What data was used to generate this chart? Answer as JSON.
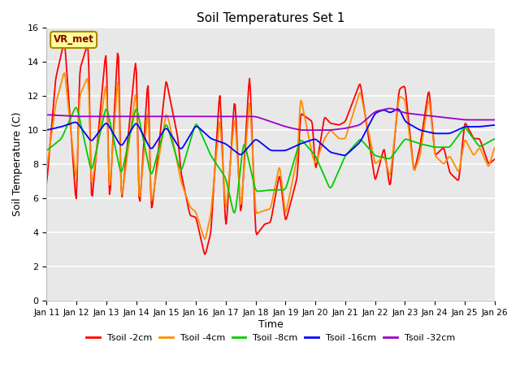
{
  "title": "Soil Temperatures Set 1",
  "xlabel": "Time",
  "ylabel": "Soil Temperature (C)",
  "annotation": "VR_met",
  "ylim": [
    0,
    16
  ],
  "xlim": [
    0,
    15
  ],
  "xtick_labels": [
    "Jan 11",
    "Jan 12",
    "Jan 13",
    "Jan 14",
    "Jan 15",
    "Jan 16",
    "Jan 17",
    "Jan 18",
    "Jan 19",
    "Jan 20",
    "Jan 21",
    "Jan 22",
    "Jan 23",
    "Jan 24",
    "Jan 25",
    "Jan 26"
  ],
  "ytick_values": [
    0,
    2,
    4,
    6,
    8,
    10,
    12,
    14,
    16
  ],
  "series_colors": [
    "#ff0000",
    "#ff8c00",
    "#00cc00",
    "#0000ff",
    "#9900cc"
  ],
  "series_labels": [
    "Tsoil -2cm",
    "Tsoil -4cm",
    "Tsoil -8cm",
    "Tsoil -16cm",
    "Tsoil -32cm"
  ],
  "bg_color": "#e8e8e8",
  "fig_color": "#ffffff",
  "grid_color": "#ffffff",
  "t2cm_x": [
    0,
    0.3,
    0.6,
    1.0,
    1.1,
    1.4,
    1.5,
    2.0,
    2.1,
    2.4,
    2.5,
    3.0,
    3.1,
    3.4,
    3.5,
    4.0,
    4.1,
    4.4,
    4.5,
    4.8,
    5.0,
    5.3,
    5.5,
    5.8,
    6.0,
    6.3,
    6.5,
    6.8,
    7.0,
    7.3,
    7.5,
    7.8,
    8.0,
    8.4,
    8.5,
    8.9,
    9.0,
    9.3,
    9.5,
    9.8,
    10.0,
    10.5,
    11.0,
    11.3,
    11.5,
    11.8,
    12.0,
    12.3,
    12.5,
    12.8,
    13.0,
    13.3,
    13.5,
    13.8,
    14.0,
    14.3,
    14.5,
    14.8,
    15.0
  ],
  "t2cm_y": [
    6.8,
    13.0,
    15.3,
    5.3,
    13.5,
    15.2,
    5.5,
    15.0,
    5.4,
    15.5,
    5.5,
    14.5,
    5.0,
    13.3,
    4.9,
    13.0,
    12.1,
    9.5,
    7.5,
    5.0,
    4.9,
    2.6,
    4.0,
    12.5,
    3.9,
    12.2,
    4.7,
    13.6,
    3.8,
    4.5,
    4.6,
    7.5,
    4.6,
    7.3,
    11.0,
    10.5,
    7.5,
    10.8,
    10.4,
    10.3,
    10.5,
    12.8,
    7.0,
    9.0,
    6.5,
    12.4,
    12.6,
    7.5,
    9.0,
    12.5,
    8.5,
    9.0,
    7.5,
    7.0,
    10.5,
    9.5,
    9.5,
    8.0,
    8.3
  ],
  "t4cm_x": [
    0,
    0.3,
    0.6,
    1.0,
    1.1,
    1.4,
    1.5,
    2.0,
    2.1,
    2.4,
    2.5,
    3.0,
    3.1,
    3.4,
    3.5,
    4.0,
    4.1,
    4.5,
    4.8,
    5.0,
    5.3,
    5.5,
    5.8,
    6.0,
    6.3,
    6.5,
    6.8,
    7.0,
    7.3,
    7.5,
    7.8,
    8.0,
    8.4,
    8.5,
    8.9,
    9.0,
    9.3,
    9.5,
    9.8,
    10.0,
    10.5,
    11.0,
    11.3,
    11.5,
    11.8,
    12.0,
    12.3,
    12.5,
    12.8,
    13.0,
    13.3,
    13.5,
    13.8,
    14.0,
    14.3,
    14.5,
    14.8,
    15.0
  ],
  "t4cm_y": [
    7.7,
    11.5,
    13.5,
    6.8,
    12.0,
    13.2,
    6.5,
    13.0,
    6.2,
    13.5,
    5.8,
    12.5,
    5.5,
    11.5,
    5.5,
    11.0,
    10.5,
    7.0,
    5.5,
    5.2,
    3.5,
    5.1,
    10.8,
    5.1,
    11.0,
    5.2,
    12.0,
    5.1,
    5.3,
    5.4,
    8.0,
    5.0,
    8.5,
    12.0,
    8.5,
    8.0,
    9.5,
    10.0,
    9.5,
    9.5,
    12.3,
    8.0,
    8.5,
    7.2,
    12.0,
    11.8,
    7.5,
    8.5,
    12.0,
    8.5,
    8.0,
    8.5,
    7.5,
    9.5,
    8.5,
    9.0,
    7.8,
    9.0
  ],
  "t8cm_x": [
    0,
    0.5,
    1.0,
    1.5,
    2.0,
    2.5,
    3.0,
    3.5,
    4.0,
    4.5,
    5.0,
    5.5,
    6.0,
    6.3,
    6.6,
    7.0,
    7.5,
    8.0,
    8.5,
    9.0,
    9.5,
    10.0,
    10.5,
    11.0,
    11.5,
    12.0,
    12.5,
    13.0,
    13.5,
    14.0,
    14.5,
    15.0
  ],
  "t8cm_y": [
    8.8,
    9.5,
    11.5,
    7.5,
    11.5,
    7.3,
    11.5,
    7.2,
    10.5,
    7.5,
    10.5,
    8.5,
    7.2,
    4.8,
    9.5,
    6.4,
    6.5,
    6.5,
    9.5,
    8.5,
    6.5,
    8.5,
    9.5,
    8.5,
    8.3,
    9.5,
    9.2,
    9.0,
    9.0,
    10.2,
    9.0,
    9.5
  ],
  "t16cm_x": [
    0,
    0.5,
    1.0,
    1.5,
    2.0,
    2.5,
    3.0,
    3.5,
    4.0,
    4.5,
    5.0,
    5.5,
    6.0,
    6.5,
    7.0,
    7.5,
    8.0,
    8.5,
    9.0,
    9.5,
    10.0,
    10.5,
    11.0,
    11.3,
    11.5,
    11.8,
    12.0,
    12.5,
    13.0,
    13.5,
    14.0,
    14.5,
    15.0
  ],
  "t16cm_y": [
    10.0,
    10.2,
    10.5,
    9.3,
    10.5,
    9.0,
    10.5,
    8.8,
    10.2,
    8.8,
    10.3,
    9.5,
    9.2,
    8.5,
    9.5,
    8.8,
    8.8,
    9.2,
    9.5,
    8.7,
    8.5,
    9.3,
    11.0,
    11.2,
    11.0,
    11.3,
    10.5,
    10.0,
    9.8,
    9.8,
    10.2,
    10.2,
    10.3
  ],
  "t32cm_x": [
    0,
    1,
    2,
    3,
    4,
    5,
    6,
    7,
    7.5,
    8,
    8.5,
    9,
    9.5,
    10,
    10.5,
    11,
    11.3,
    11.5,
    12,
    12.5,
    13,
    13.5,
    14,
    14.5,
    15
  ],
  "t32cm_y": [
    10.9,
    10.8,
    10.8,
    10.8,
    10.8,
    10.8,
    10.8,
    10.8,
    10.5,
    10.2,
    10.0,
    10.0,
    10.0,
    10.1,
    10.3,
    11.1,
    11.2,
    11.3,
    11.0,
    10.9,
    10.8,
    10.7,
    10.6,
    10.6,
    10.6
  ]
}
